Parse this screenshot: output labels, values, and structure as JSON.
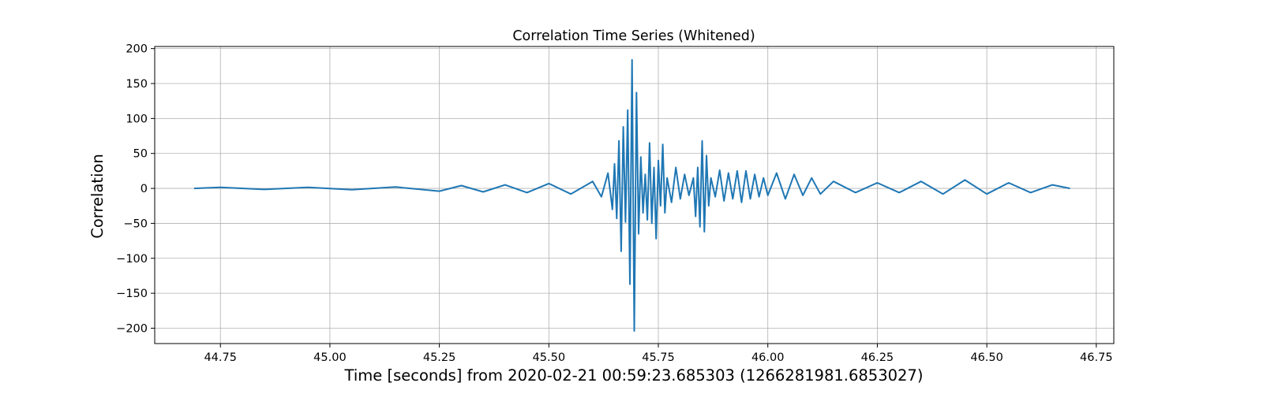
{
  "chart_data": {
    "type": "line",
    "title": "Correlation Time Series (Whitened)",
    "xlabel": "Time [seconds] from 2020-02-21 00:59:23.685303 (1266281981.6853027)",
    "ylabel": "Correlation",
    "xlim": [
      44.6,
      46.79
    ],
    "ylim": [
      -222,
      203
    ],
    "xticks": [
      44.75,
      45.0,
      45.25,
      45.5,
      45.75,
      46.0,
      46.25,
      46.5,
      46.75
    ],
    "xtick_labels": [
      "44.75",
      "45.00",
      "45.25",
      "45.50",
      "45.75",
      "46.00",
      "46.25",
      "46.50",
      "46.75"
    ],
    "yticks": [
      200,
      150,
      100,
      50,
      0,
      -50,
      -100,
      -150,
      -200
    ],
    "ytick_labels": [
      "200",
      "150",
      "100",
      "50",
      "0",
      "−50",
      "−100",
      "−150",
      "−200"
    ],
    "grid": true,
    "series": [
      {
        "color": "#1f77b4",
        "x": [
          44.69,
          44.75,
          44.85,
          44.95,
          45.05,
          45.15,
          45.25,
          45.3,
          45.35,
          45.4,
          45.45,
          45.5,
          45.55,
          45.6,
          45.62,
          45.635,
          45.645,
          45.65,
          45.655,
          45.66,
          45.665,
          45.67,
          45.675,
          45.68,
          45.685,
          45.69,
          45.695,
          45.7,
          45.705,
          45.71,
          45.715,
          45.72,
          45.725,
          45.73,
          45.735,
          45.74,
          45.745,
          45.75,
          45.755,
          45.76,
          45.765,
          45.77,
          45.78,
          45.79,
          45.8,
          45.81,
          45.82,
          45.83,
          45.835,
          45.84,
          45.845,
          45.85,
          45.855,
          45.86,
          45.865,
          45.87,
          45.88,
          45.89,
          45.9,
          45.91,
          45.92,
          45.93,
          45.94,
          45.95,
          45.96,
          45.97,
          45.98,
          45.99,
          46.0,
          46.02,
          46.04,
          46.06,
          46.08,
          46.1,
          46.12,
          46.15,
          46.2,
          46.25,
          46.3,
          46.35,
          46.4,
          46.45,
          46.5,
          46.55,
          46.6,
          46.65,
          46.69
        ],
        "y": [
          0,
          1.5,
          -1.5,
          1.5,
          -2,
          2,
          -4,
          4,
          -5,
          5,
          -6,
          7,
          -8,
          10,
          -12,
          22,
          -30,
          35,
          -43,
          68,
          -90,
          88,
          -48,
          112,
          -137,
          184,
          -204,
          137,
          -65,
          45,
          -35,
          20,
          -45,
          65,
          -50,
          30,
          -72,
          40,
          -25,
          63,
          -35,
          15,
          -20,
          30,
          -15,
          20,
          -10,
          15,
          -40,
          30,
          -55,
          68,
          -62,
          47,
          -25,
          15,
          -12,
          26,
          -18,
          22,
          -15,
          25,
          -20,
          25,
          -15,
          20,
          -12,
          15,
          -10,
          22,
          -15,
          20,
          -10,
          15,
          -8,
          10,
          -6,
          8,
          -6,
          10,
          -8,
          12,
          -8,
          8,
          -6,
          5,
          0
        ]
      }
    ]
  }
}
